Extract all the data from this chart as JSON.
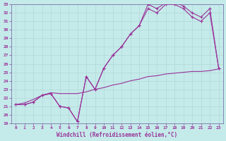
{
  "xlabel": "Windchill (Refroidissement éolien,°C)",
  "xlim": [
    -0.5,
    23.5
  ],
  "ylim": [
    19,
    33
  ],
  "yticks": [
    19,
    20,
    21,
    22,
    23,
    24,
    25,
    26,
    27,
    28,
    29,
    30,
    31,
    32,
    33
  ],
  "xticks": [
    0,
    1,
    2,
    3,
    4,
    5,
    6,
    7,
    8,
    9,
    10,
    11,
    12,
    13,
    14,
    15,
    16,
    17,
    18,
    19,
    20,
    21,
    22,
    23
  ],
  "bg_color": "#c5eaea",
  "line_color": "#993399",
  "grid_color": "#b0d8d8",
  "line1_x": [
    0,
    1,
    2,
    3,
    4,
    5,
    6,
    7,
    8,
    9,
    10,
    11,
    12,
    13,
    14,
    15,
    16,
    17,
    18,
    19,
    20,
    21,
    22,
    23
  ],
  "line1_y": [
    21.2,
    21.2,
    21.5,
    22.3,
    22.5,
    21.0,
    20.8,
    19.2,
    24.5,
    23.0,
    25.5,
    27.0,
    28.0,
    29.5,
    30.5,
    33.0,
    32.5,
    33.2,
    33.3,
    32.8,
    32.0,
    31.5,
    32.5,
    25.5
  ],
  "line2_x": [
    0,
    1,
    2,
    3,
    4,
    5,
    6,
    7,
    8,
    9,
    10,
    11,
    12,
    13,
    14,
    15,
    16,
    17,
    18,
    19,
    20,
    21,
    22,
    23
  ],
  "line2_y": [
    21.2,
    21.2,
    21.5,
    22.3,
    22.5,
    21.0,
    20.8,
    19.2,
    24.5,
    23.0,
    25.5,
    27.0,
    28.0,
    29.5,
    30.5,
    32.5,
    32.0,
    33.0,
    33.0,
    32.5,
    31.5,
    31.0,
    32.0,
    25.5
  ],
  "line3_x": [
    0,
    1,
    2,
    3,
    4,
    5,
    6,
    7,
    8,
    9,
    10,
    11,
    12,
    13,
    14,
    15,
    16,
    17,
    18,
    19,
    20,
    21,
    22,
    23
  ],
  "line3_y": [
    21.2,
    21.4,
    21.8,
    22.3,
    22.6,
    22.5,
    22.5,
    22.5,
    22.7,
    23.0,
    23.2,
    23.5,
    23.7,
    24.0,
    24.2,
    24.5,
    24.6,
    24.8,
    24.9,
    25.0,
    25.1,
    25.1,
    25.2,
    25.4
  ]
}
